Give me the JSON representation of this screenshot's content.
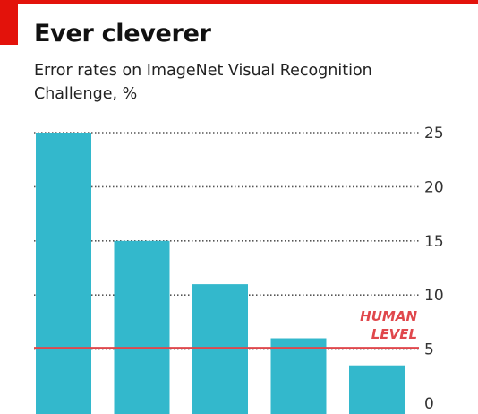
{
  "header": {
    "title": "Ever cleverer",
    "subtitle": "Error rates on ImageNet Visual Recognition Challenge, %"
  },
  "colors": {
    "bar": "#33b8cc",
    "human_line": "#e0474c",
    "accent": "#e3120b",
    "grid": "#555555"
  },
  "chart_data": {
    "type": "bar",
    "title": "Ever cleverer",
    "subtitle": "Error rates on ImageNet Visual Recognition Challenge, %",
    "xlabel": "",
    "ylabel": "",
    "values": [
      25,
      15,
      11,
      6,
      3.5
    ],
    "ylim": [
      0,
      25
    ],
    "yticks": [
      0,
      5,
      10,
      15,
      20,
      25
    ],
    "ytick_labels": [
      "0",
      "5",
      "10",
      "15",
      "20",
      "25"
    ],
    "grid": true,
    "reference_line": {
      "value": 5.1,
      "label": [
        "HUMAN",
        "LEVEL"
      ]
    }
  }
}
